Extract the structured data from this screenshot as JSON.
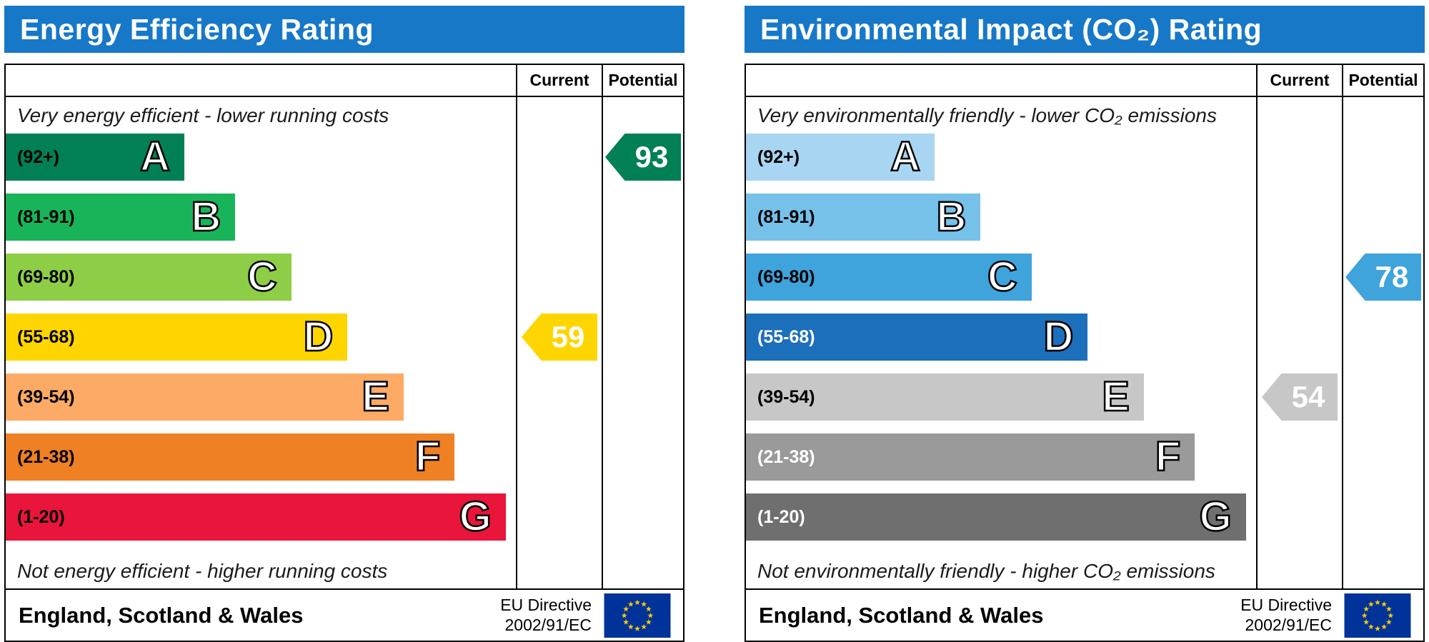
{
  "styles": {
    "header_bg": "#1778c8",
    "table_border": "#000000",
    "eu_flag_bg": "#003399",
    "eu_star": "#ffcc00"
  },
  "chart_data": [
    {
      "type": "epc-band-rating",
      "title": "Energy Efficiency Rating",
      "columns": {
        "current": "Current",
        "potential": "Potential"
      },
      "top_note": "Very energy efficient - lower running costs",
      "bottom_note": "Not energy efficient - higher running costs",
      "score_scale": [
        1,
        100
      ],
      "bands": [
        {
          "letter": "A",
          "range_label": "(92+)",
          "range": [
            92,
            100
          ],
          "color": "#008054",
          "width_pct": 35,
          "label_color": "#000000"
        },
        {
          "letter": "B",
          "range_label": "(81-91)",
          "range": [
            81,
            91
          ],
          "color": "#19b459",
          "width_pct": 45,
          "label_color": "#000000"
        },
        {
          "letter": "C",
          "range_label": "(69-80)",
          "range": [
            69,
            80
          ],
          "color": "#8dce46",
          "width_pct": 56,
          "label_color": "#000000"
        },
        {
          "letter": "D",
          "range_label": "(55-68)",
          "range": [
            55,
            68
          ],
          "color": "#ffd500",
          "width_pct": 67,
          "label_color": "#000000"
        },
        {
          "letter": "E",
          "range_label": "(39-54)",
          "range": [
            39,
            54
          ],
          "color": "#fcaa65",
          "width_pct": 78,
          "label_color": "#000000"
        },
        {
          "letter": "F",
          "range_label": "(21-38)",
          "range": [
            21,
            38
          ],
          "color": "#ef8023",
          "width_pct": 88,
          "label_color": "#000000"
        },
        {
          "letter": "G",
          "range_label": "(1-20)",
          "range": [
            1,
            20
          ],
          "color": "#e9153b",
          "width_pct": 98,
          "label_color": "#000000"
        }
      ],
      "current": {
        "value": 59,
        "band": "D",
        "band_index": 3,
        "color": "#ffd500",
        "text_color": "#ffffff"
      },
      "potential": {
        "value": 93,
        "band": "A",
        "band_index": 0,
        "color": "#008054",
        "text_color": "#ffffff"
      },
      "footer": {
        "region": "England, Scotland & Wales",
        "directive_line1": "EU Directive",
        "directive_line2": "2002/91/EC"
      }
    },
    {
      "type": "epc-band-rating",
      "title": "Environmental Impact (CO₂) Rating",
      "columns": {
        "current": "Current",
        "potential": "Potential"
      },
      "top_note": "Very environmentally friendly - lower CO₂ emissions",
      "bottom_note": "Not environmentally friendly - higher CO₂ emissions",
      "score_scale": [
        1,
        100
      ],
      "bands": [
        {
          "letter": "A",
          "range_label": "(92+)",
          "range": [
            92,
            100
          ],
          "color": "#a8d5f2",
          "width_pct": 37,
          "label_color": "#000000"
        },
        {
          "letter": "B",
          "range_label": "(81-91)",
          "range": [
            81,
            91
          ],
          "color": "#76c1ea",
          "width_pct": 46,
          "label_color": "#000000"
        },
        {
          "letter": "C",
          "range_label": "(69-80)",
          "range": [
            69,
            80
          ],
          "color": "#3fa3dc",
          "width_pct": 56,
          "label_color": "#000000"
        },
        {
          "letter": "D",
          "range_label": "(55-68)",
          "range": [
            55,
            68
          ],
          "color": "#1c6fbb",
          "width_pct": 67,
          "label_color": "#ffffff"
        },
        {
          "letter": "E",
          "range_label": "(39-54)",
          "range": [
            39,
            54
          ],
          "color": "#c7c7c7",
          "width_pct": 78,
          "label_color": "#000000"
        },
        {
          "letter": "F",
          "range_label": "(21-38)",
          "range": [
            21,
            38
          ],
          "color": "#9a9a9a",
          "width_pct": 88,
          "label_color": "#ffffff"
        },
        {
          "letter": "G",
          "range_label": "(1-20)",
          "range": [
            1,
            20
          ],
          "color": "#6f6f6f",
          "width_pct": 98,
          "label_color": "#ffffff"
        }
      ],
      "current": {
        "value": 54,
        "band": "E",
        "band_index": 4,
        "color": "#c7c7c7",
        "text_color": "#ffffff"
      },
      "potential": {
        "value": 78,
        "band": "C",
        "band_index": 2,
        "color": "#3fa3dc",
        "text_color": "#ffffff"
      },
      "footer": {
        "region": "England, Scotland & Wales",
        "directive_line1": "EU Directive",
        "directive_line2": "2002/91/EC"
      }
    }
  ]
}
